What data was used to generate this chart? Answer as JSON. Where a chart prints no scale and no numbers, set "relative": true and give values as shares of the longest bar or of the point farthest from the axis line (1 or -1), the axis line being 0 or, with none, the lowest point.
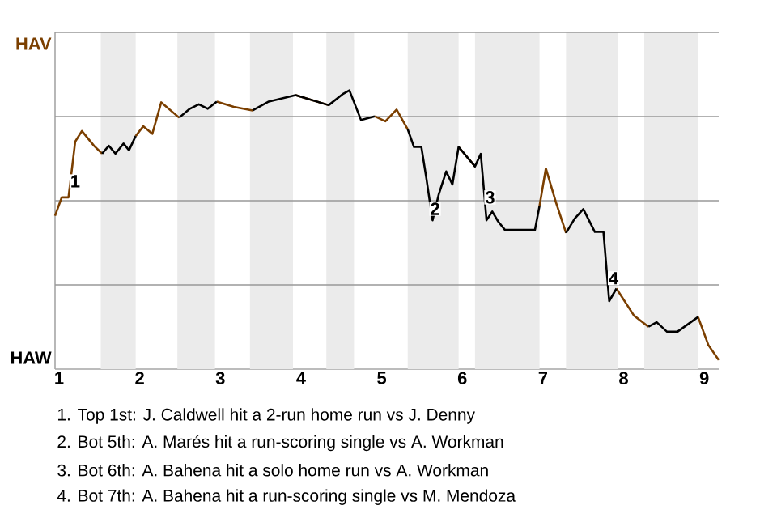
{
  "chart_data": {
    "type": "line",
    "relative": true,
    "x": [
      0.95,
      1.033,
      1.117,
      1.2,
      1.283,
      1.433,
      1.533,
      1.617,
      1.7,
      1.8,
      1.867,
      1.95,
      2.044,
      2.156,
      2.267,
      2.489,
      2.622,
      2.733,
      2.844,
      2.956,
      3.167,
      3.4,
      3.6,
      3.933,
      4.343,
      4.514,
      4.6,
      4.743,
      4.914,
      5.046,
      5.185,
      5.323,
      5.4,
      5.492,
      5.554,
      5.631,
      5.708,
      5.8,
      5.877,
      5.954,
      6.157,
      6.229,
      6.3,
      6.371,
      6.443,
      6.529,
      6.9,
      6.957,
      7.036,
      7.161,
      7.286,
      7.393,
      7.5,
      7.643,
      7.75,
      7.821,
      7.911,
      8.128,
      8.308,
      8.41,
      8.538,
      8.667,
      8.923,
      9.051,
      9.179
    ],
    "series": [
      {
        "color": "#7b3f00",
        "values": [
          0.55,
          0.616,
          0.616,
          0.816,
          0.854,
          0.801,
          0.773,
          null,
          null,
          null,
          null,
          0.836,
          0.871,
          0.844,
          0.957,
          0.902,
          null,
          null,
          null,
          0.96,
          0.941,
          0.928,
          null,
          0.983,
          0.947,
          null,
          null,
          null,
          0.907,
          0.889,
          0.931,
          0.86,
          null,
          null,
          null,
          null,
          null,
          null,
          null,
          0.797,
          0.727,
          null,
          null,
          null,
          null,
          null,
          null,
          0.585,
          0.72,
          0.598,
          0.488,
          null,
          null,
          null,
          null,
          null,
          0.289,
          0.192,
          0.152,
          null,
          null,
          null,
          0.187,
          0.086,
          0.033
        ]
      },
      {
        "color": "#000000",
        "values": [
          null,
          null,
          null,
          null,
          null,
          null,
          0.773,
          0.801,
          0.773,
          0.809,
          0.785,
          0.836,
          null,
          null,
          null,
          0.902,
          0.934,
          0.95,
          0.934,
          0.96,
          null,
          0.928,
          0.96,
          0.983,
          0.947,
          0.986,
          1,
          0.894,
          0.907,
          null,
          null,
          0.86,
          0.797,
          0.797,
          0.685,
          0.534,
          0.627,
          0.709,
          0.662,
          0.797,
          0.727,
          0.772,
          0.534,
          0.565,
          0.53,
          0.499,
          0.499,
          0.585,
          null,
          null,
          0.488,
          0.54,
          0.574,
          0.492,
          0.492,
          0.244,
          0.289,
          null,
          0.152,
          0.168,
          0.134,
          0.134,
          0.187,
          null,
          null
        ]
      }
    ],
    "xlim": [
      0.95,
      9.179
    ],
    "xticks": [
      1,
      2,
      3,
      4,
      5,
      6,
      7,
      8,
      9
    ],
    "ref_lines": [
      {
        "axis": "y",
        "value": 0.302,
        "color": "#999999"
      },
      {
        "axis": "y",
        "value": 0.604,
        "color": "#999999"
      },
      {
        "axis": "y",
        "value": 0.906,
        "color": "#999999"
      },
      {
        "axis": "y",
        "value": 1.208,
        "color": "#999999"
      }
    ],
    "bands": [
      {
        "axis": "x",
        "from": 1.517,
        "to": 1.95,
        "color": "#ebebeb"
      },
      {
        "axis": "x",
        "from": 2.467,
        "to": 2.933,
        "color": "#ebebeb"
      },
      {
        "axis": "x",
        "from": 3.367,
        "to": 3.9,
        "color": "#ebebeb"
      },
      {
        "axis": "x",
        "from": 4.314,
        "to": 4.657,
        "color": "#ebebeb"
      },
      {
        "axis": "x",
        "from": 5.323,
        "to": 5.954,
        "color": "#ebebeb"
      },
      {
        "axis": "x",
        "from": 6.157,
        "to": 6.957,
        "color": "#ebebeb"
      },
      {
        "axis": "x",
        "from": 7.286,
        "to": 7.929,
        "color": "#ebebeb"
      },
      {
        "axis": "x",
        "from": 8.256,
        "to": 8.923,
        "color": "#ebebeb"
      }
    ],
    "annotations": [
      {
        "text": "1",
        "x": 1.2,
        "y": 0.674
      },
      {
        "text": "2",
        "x": 5.662,
        "y": 0.575
      },
      {
        "text": "3",
        "x": 6.343,
        "y": 0.616
      },
      {
        "text": "4",
        "x": 7.875,
        "y": 0.326
      },
      "HAV",
      "HAW",
      "1. Top 1st: J. Caldwell hit a 2-run home run vs J. Denny",
      "2. Bot 5th: A. Marés hit a run-scoring single vs A. Workman",
      "3. Bot 6th: A. Bahena hit a solo home run vs A. Workman",
      "4. Bot 7th: A. Bahena hit a run-scoring single vs M. Mendoza"
    ]
  }
}
